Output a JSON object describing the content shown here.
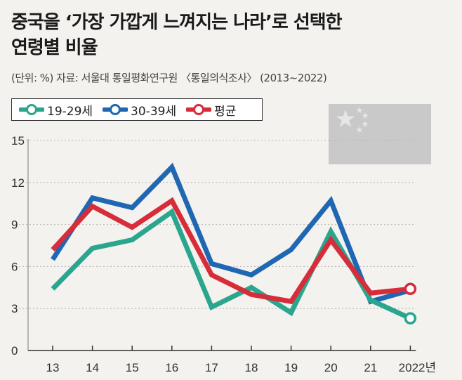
{
  "title_line1": "중국을 ‘가장 가깝게 느껴지는 나라’로 선택한",
  "title_line2": "연령별 비율",
  "subtitle": "(단위: %)  자료: 서울대 통일평화연구원 〈통일의식조사〉 (2013~2022)",
  "colors": {
    "teal": "#2aa68e",
    "blue": "#1f67b3",
    "red": "#d72c3a",
    "flag_bg": "#c9c9c9",
    "flag_star": "#e6e6e6"
  },
  "chart_data": {
    "type": "line",
    "categories": [
      "13",
      "14",
      "15",
      "16",
      "17",
      "18",
      "19",
      "20",
      "21",
      "2022년"
    ],
    "series": [
      {
        "name": "19-29세",
        "color": "#2aa68e",
        "values": [
          4.4,
          7.3,
          7.9,
          9.9,
          3.1,
          4.5,
          2.7,
          8.5,
          3.6,
          2.3
        ]
      },
      {
        "name": "30-39세",
        "color": "#1f67b3",
        "values": [
          6.5,
          10.9,
          10.2,
          13.1,
          6.2,
          5.4,
          7.2,
          10.7,
          3.5,
          4.3
        ]
      },
      {
        "name": "평균",
        "color": "#d72c3a",
        "values": [
          7.2,
          10.3,
          8.8,
          10.7,
          5.4,
          4.0,
          3.5,
          7.9,
          4.1,
          4.4
        ]
      }
    ],
    "yticks": [
      "0",
      "3",
      "6",
      "9",
      "12",
      "15"
    ],
    "ylim": [
      0,
      15
    ],
    "grid": "horizontal dashed"
  }
}
